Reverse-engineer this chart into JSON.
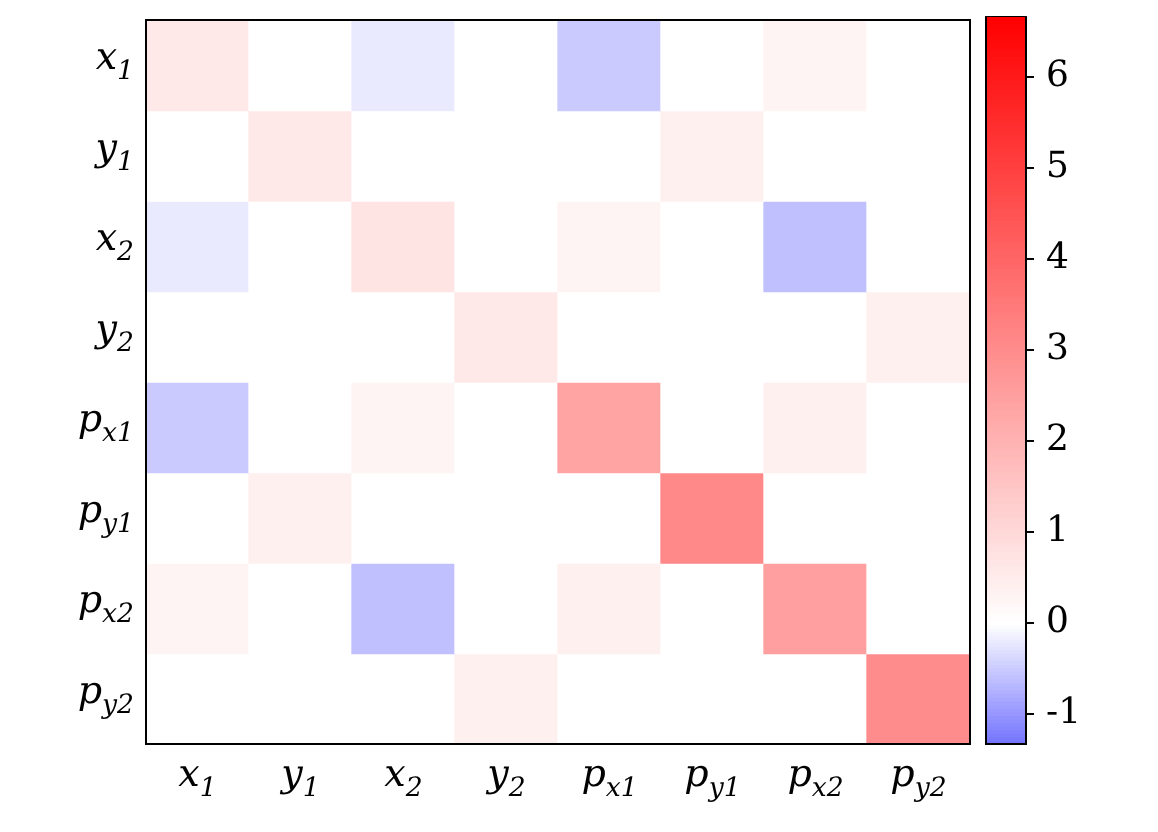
{
  "chart_data": {
    "type": "heatmap",
    "categories": [
      "x$_{1}$",
      "y$_{1}$",
      "x$_{2}$",
      "y$_{2}$",
      "p$_{x1}$",
      "p$_{y1}$",
      "p$_{x2}$",
      "p$_{y2}$"
    ],
    "y_categories": [
      "x$_{1}$",
      "y$_{1}$",
      "x$_{2}$",
      "y$_{2}$",
      "p$_{x1}$",
      "p$_{y1}$",
      "p$_{x2}$",
      "p$_{y2}$"
    ],
    "cells": [
      [
        0.6,
        0,
        -0.2,
        0,
        -0.5,
        0,
        0.3,
        0
      ],
      [
        0,
        0.6,
        0,
        0,
        0,
        0.4,
        0,
        0
      ],
      [
        -0.2,
        0,
        0.7,
        0,
        0.3,
        0,
        -0.6,
        0
      ],
      [
        0,
        0,
        0,
        0.6,
        0,
        0,
        0,
        0.4
      ],
      [
        -0.5,
        0,
        0.3,
        0,
        2.4,
        0,
        0.4,
        0
      ],
      [
        0,
        0.4,
        0,
        0,
        0,
        3.1,
        0,
        0
      ],
      [
        0.3,
        0,
        -0.6,
        0,
        0.4,
        0,
        2.5,
        0
      ],
      [
        0,
        0,
        0,
        0.4,
        0,
        0,
        0,
        3.0
      ]
    ],
    "clim": [
      -1.33,
      6.67
    ],
    "cticks": [
      -1,
      0,
      1,
      2,
      3,
      4,
      5,
      6
    ]
  }
}
